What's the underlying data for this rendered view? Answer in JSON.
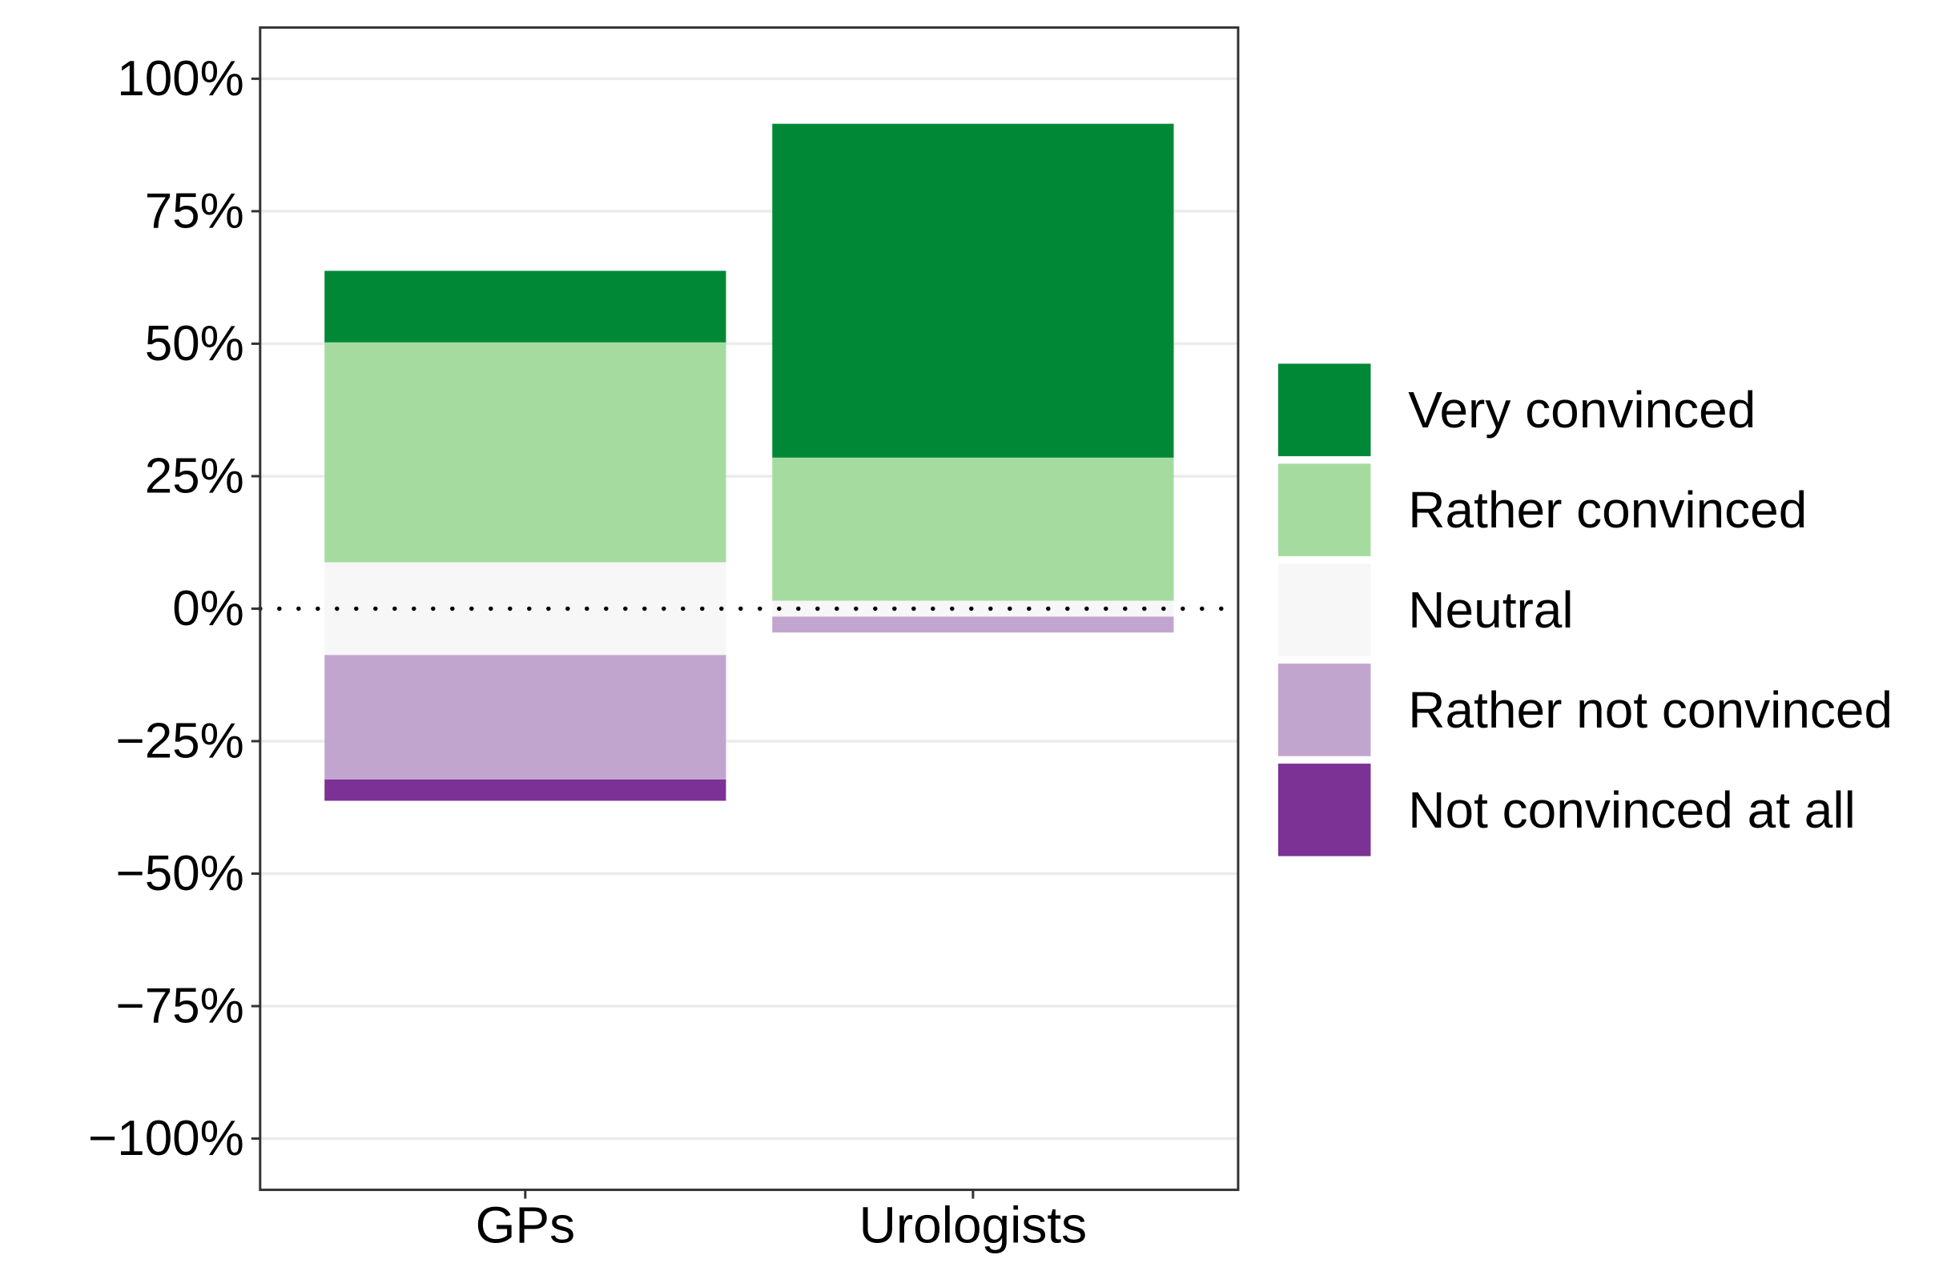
{
  "chart_data": {
    "type": "bar",
    "stacked": "diverging",
    "categories": [
      "GPs",
      "Urologists"
    ],
    "series": [
      {
        "name": "Very convinced",
        "color": "#008837",
        "values": [
          13.5,
          63.0
        ]
      },
      {
        "name": "Rather convinced",
        "color": "#A6DBA0",
        "values": [
          41.5,
          27.0
        ]
      },
      {
        "name": "Neutral",
        "color": "#F7F7F7",
        "values": [
          17.5,
          3.0
        ]
      },
      {
        "name": "Rather not convinced",
        "color": "#C2A5CF",
        "values": [
          23.5,
          3.0
        ]
      },
      {
        "name": "Not convinced at all",
        "color": "#7B3294",
        "values": [
          4.0,
          0.0
        ]
      }
    ],
    "ylim": [
      -110,
      110
    ],
    "yticks": [
      100,
      75,
      50,
      25,
      0,
      -25,
      -50,
      -75,
      -100
    ],
    "ytick_labels": [
      "100%",
      "75%",
      "50%",
      "25%",
      "0%",
      "−25%",
      "−50%",
      "−75%",
      "−100%"
    ],
    "reference_line": 0,
    "grid": true,
    "legend": "right",
    "title": "",
    "xlabel": "",
    "ylabel": ""
  }
}
